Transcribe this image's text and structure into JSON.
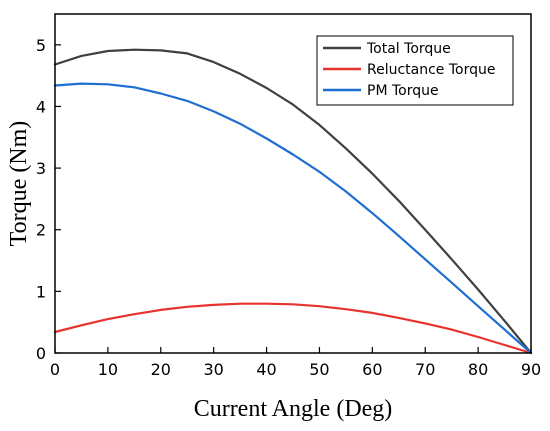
{
  "chart_data": {
    "type": "line",
    "title": "",
    "xlabel": "Current Angle (Deg)",
    "ylabel": "Torque (Nm)",
    "xlim": [
      0,
      90
    ],
    "ylim": [
      0,
      5.5
    ],
    "xticks": [
      0,
      10,
      20,
      30,
      40,
      50,
      60,
      70,
      80,
      90
    ],
    "yticks": [
      0,
      1,
      2,
      3,
      4,
      5
    ],
    "grid": false,
    "legend_position": "top-right",
    "x": [
      0,
      5,
      10,
      15,
      20,
      25,
      30,
      35,
      40,
      45,
      50,
      55,
      60,
      65,
      70,
      75,
      80,
      85,
      90
    ],
    "series": [
      {
        "name": "Total Torque",
        "color": "#404040",
        "values": [
          4.68,
          4.82,
          4.9,
          4.92,
          4.91,
          4.86,
          4.72,
          4.53,
          4.3,
          4.03,
          3.7,
          3.32,
          2.91,
          2.47,
          2.0,
          1.52,
          1.03,
          0.52,
          0.0
        ]
      },
      {
        "name": "Reluctance Torque",
        "color": "#e8322e",
        "values": [
          0.34,
          0.45,
          0.55,
          0.63,
          0.7,
          0.75,
          0.78,
          0.8,
          0.8,
          0.79,
          0.76,
          0.71,
          0.65,
          0.57,
          0.48,
          0.38,
          0.26,
          0.13,
          0.0
        ]
      },
      {
        "name": "PM Torque",
        "color": "#1f6fd1",
        "values": [
          4.34,
          4.37,
          4.36,
          4.31,
          4.21,
          4.09,
          3.92,
          3.72,
          3.48,
          3.22,
          2.94,
          2.62,
          2.27,
          1.9,
          1.52,
          1.14,
          0.76,
          0.38,
          0.0
        ]
      }
    ]
  }
}
